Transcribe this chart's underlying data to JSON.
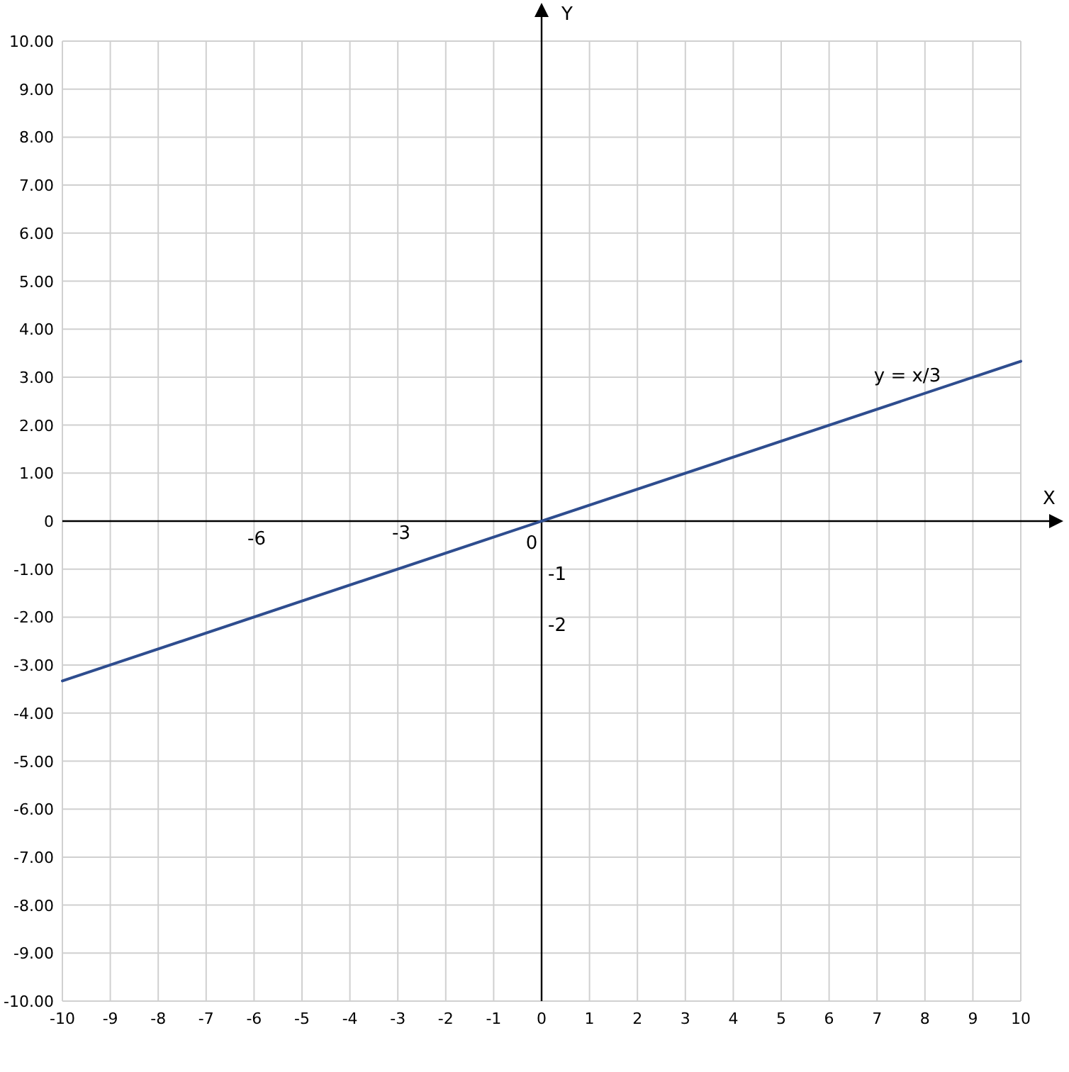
{
  "chart_data": {
    "type": "line",
    "xlabel": "X",
    "ylabel": "Y",
    "xlim": [
      -10,
      10
    ],
    "ylim": [
      -10,
      10
    ],
    "xticks": [
      -10,
      -9,
      -8,
      -7,
      -6,
      -5,
      -4,
      -3,
      -2,
      -1,
      0,
      1,
      2,
      3,
      4,
      5,
      6,
      7,
      8,
      9,
      10
    ],
    "yticks": [
      {
        "value": -10,
        "label": "-10.00"
      },
      {
        "value": -9,
        "label": "-9.00"
      },
      {
        "value": -8,
        "label": "-8.00"
      },
      {
        "value": -7,
        "label": "-7.00"
      },
      {
        "value": -6,
        "label": "-6.00"
      },
      {
        "value": -5,
        "label": "-5.00"
      },
      {
        "value": -4,
        "label": "-4.00"
      },
      {
        "value": -3,
        "label": "-3.00"
      },
      {
        "value": -2,
        "label": "-2.00"
      },
      {
        "value": -1,
        "label": "-1.00"
      },
      {
        "value": 0,
        "label": "0"
      },
      {
        "value": 1,
        "label": "1.00"
      },
      {
        "value": 2,
        "label": "2.00"
      },
      {
        "value": 3,
        "label": "3.00"
      },
      {
        "value": 4,
        "label": "4.00"
      },
      {
        "value": 5,
        "label": "5.00"
      },
      {
        "value": 6,
        "label": "6.00"
      },
      {
        "value": 7,
        "label": "7.00"
      },
      {
        "value": 8,
        "label": "8.00"
      },
      {
        "value": 9,
        "label": "9.00"
      },
      {
        "value": 10,
        "label": "10.00"
      }
    ],
    "grid": true,
    "marker": "none",
    "line_style": "solid",
    "series": [
      {
        "color": "#2e4d8f",
        "x": [
          -10,
          10
        ],
        "values": [
          -3.33,
          3.33
        ]
      }
    ],
    "annotations": [
      "y = x/3",
      "-6",
      "-3",
      "0",
      "-1",
      "-2"
    ]
  }
}
